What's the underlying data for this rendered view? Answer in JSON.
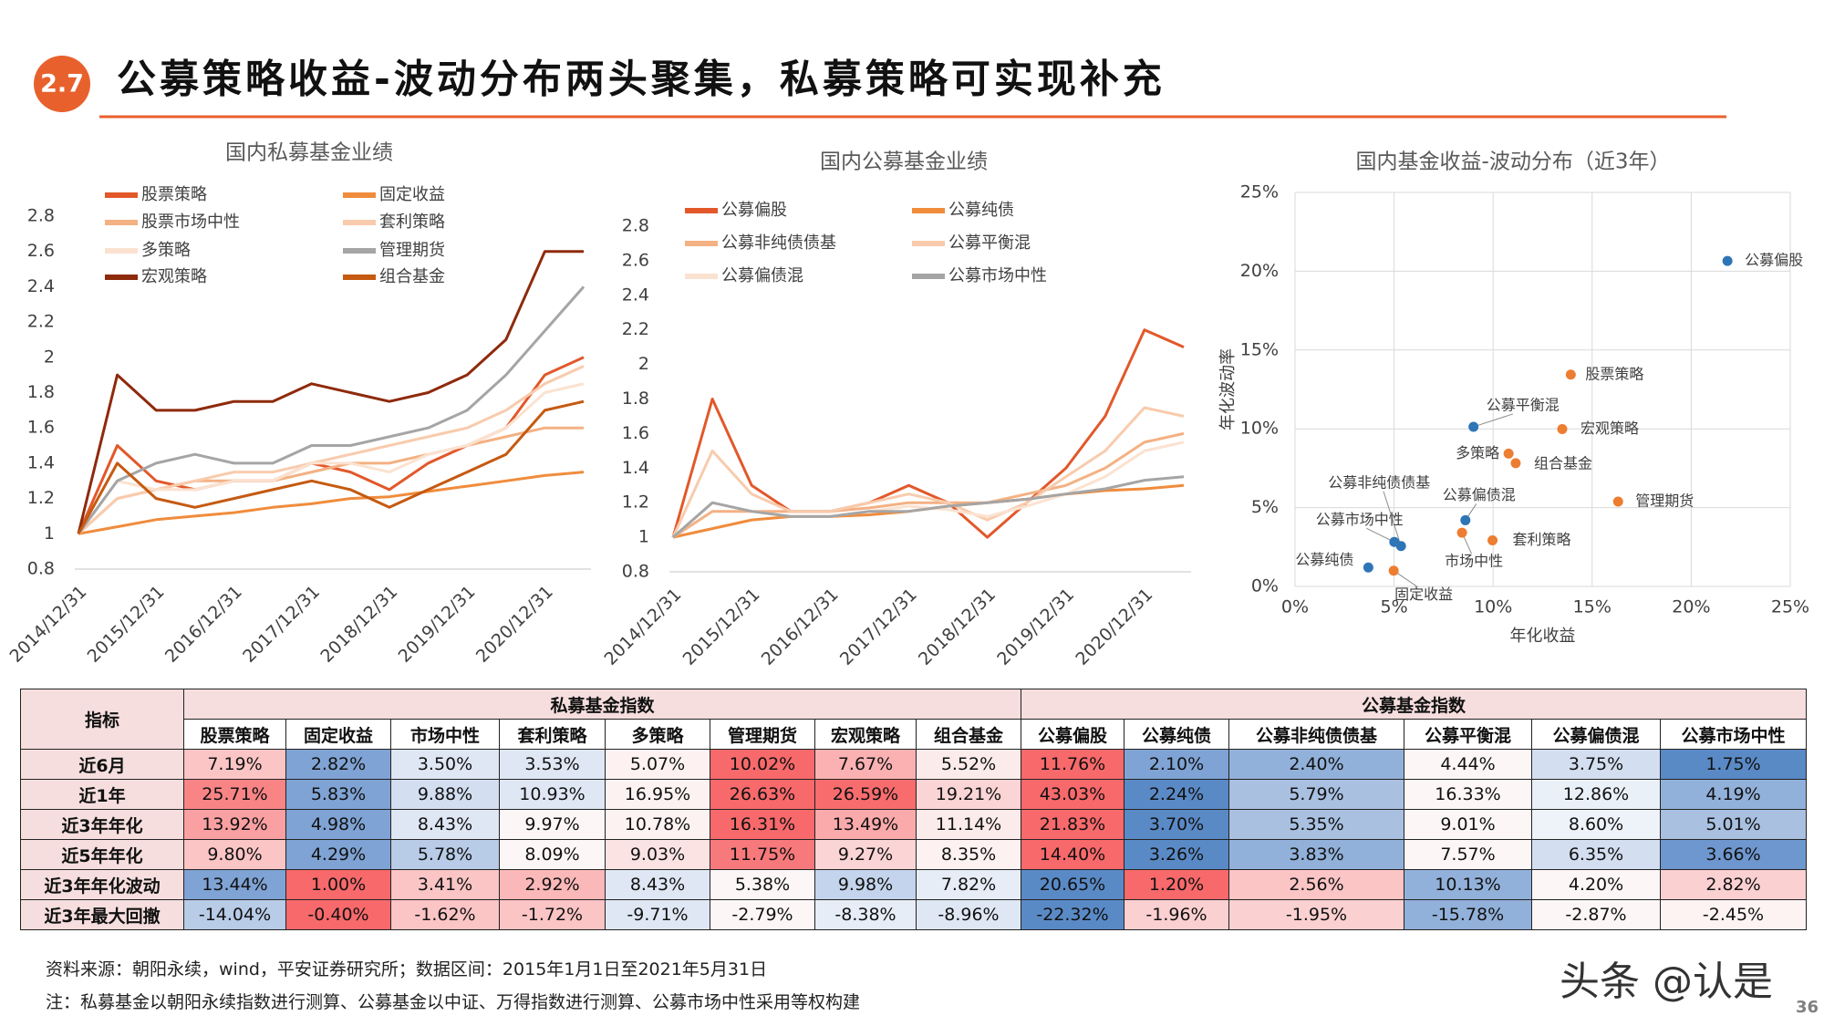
{
  "header": {
    "number": "2.7",
    "title": "公募策略收益-波动分布两头聚集，私募策略可实现补充"
  },
  "chart_data": [
    {
      "type": "line",
      "title": "国内私募基金业绩",
      "categories": [
        "2014/12/31",
        null,
        "2015/12/31",
        null,
        "2016/12/31",
        null,
        "2017/12/31",
        null,
        "2018/12/31",
        null,
        "2019/12/31",
        null,
        "2020/12/31",
        null
      ],
      "ylim": [
        0.8,
        2.8
      ],
      "yticks": [
        0.8,
        1,
        1.2,
        1.4,
        1.6,
        1.8,
        2,
        2.2,
        2.4,
        2.6,
        2.8
      ],
      "series": [
        {
          "name": "股票策略",
          "color": "#e2582a",
          "values": [
            1.0,
            1.5,
            1.3,
            1.25,
            1.3,
            1.3,
            1.4,
            1.35,
            1.25,
            1.4,
            1.5,
            1.6,
            1.9,
            2.0
          ]
        },
        {
          "name": "固定收益",
          "color": "#f08c3c",
          "values": [
            1.0,
            1.04,
            1.08,
            1.1,
            1.12,
            1.15,
            1.17,
            1.2,
            1.21,
            1.24,
            1.27,
            1.3,
            1.33,
            1.35
          ]
        },
        {
          "name": "股票市场中性",
          "color": "#f4b183",
          "values": [
            1.0,
            1.2,
            1.25,
            1.3,
            1.3,
            1.3,
            1.35,
            1.4,
            1.4,
            1.45,
            1.5,
            1.55,
            1.6,
            1.6
          ]
        },
        {
          "name": "套利策略",
          "color": "#f8cbad",
          "values": [
            1.0,
            1.2,
            1.25,
            1.3,
            1.35,
            1.35,
            1.4,
            1.45,
            1.5,
            1.55,
            1.6,
            1.7,
            1.85,
            1.95
          ]
        },
        {
          "name": "多策略",
          "color": "#fbe2d0",
          "values": [
            1.0,
            1.3,
            1.25,
            1.25,
            1.3,
            1.3,
            1.4,
            1.4,
            1.35,
            1.45,
            1.5,
            1.6,
            1.8,
            1.85
          ]
        },
        {
          "name": "管理期货",
          "color": "#a5a5a5",
          "values": [
            1.0,
            1.3,
            1.4,
            1.45,
            1.4,
            1.4,
            1.5,
            1.5,
            1.55,
            1.6,
            1.7,
            1.9,
            2.15,
            2.4
          ]
        },
        {
          "name": "宏观策略",
          "color": "#8e2a0c",
          "values": [
            1.0,
            1.9,
            1.7,
            1.7,
            1.75,
            1.75,
            1.85,
            1.8,
            1.75,
            1.8,
            1.9,
            2.1,
            2.6,
            2.6
          ]
        },
        {
          "name": "组合基金",
          "color": "#c55a11",
          "values": [
            1.0,
            1.4,
            1.2,
            1.15,
            1.2,
            1.25,
            1.3,
            1.25,
            1.15,
            1.25,
            1.35,
            1.45,
            1.7,
            1.75
          ]
        }
      ]
    },
    {
      "type": "line",
      "title": "国内公募基金业绩",
      "categories": [
        "2014/12/31",
        null,
        "2015/12/31",
        null,
        "2016/12/31",
        null,
        "2017/12/31",
        null,
        "2018/12/31",
        null,
        "2019/12/31",
        null,
        "2020/12/31",
        null
      ],
      "ylim": [
        0.8,
        2.8
      ],
      "yticks": [
        0.8,
        1,
        1.2,
        1.4,
        1.6,
        1.8,
        2,
        2.2,
        2.4,
        2.6,
        2.8
      ],
      "series": [
        {
          "name": "公募偏股",
          "color": "#e2582a",
          "values": [
            1.0,
            1.8,
            1.3,
            1.15,
            1.15,
            1.2,
            1.3,
            1.2,
            1.0,
            1.2,
            1.4,
            1.7,
            2.2,
            2.1
          ]
        },
        {
          "name": "公募纯债",
          "color": "#f08c3c",
          "values": [
            1.0,
            1.05,
            1.1,
            1.12,
            1.12,
            1.13,
            1.15,
            1.18,
            1.2,
            1.22,
            1.25,
            1.27,
            1.28,
            1.3
          ]
        },
        {
          "name": "公募非纯债债基",
          "color": "#f4b183",
          "values": [
            1.0,
            1.15,
            1.15,
            1.15,
            1.15,
            1.17,
            1.2,
            1.2,
            1.2,
            1.25,
            1.3,
            1.4,
            1.55,
            1.6
          ]
        },
        {
          "name": "公募平衡混",
          "color": "#f8cbad",
          "values": [
            1.0,
            1.5,
            1.25,
            1.15,
            1.15,
            1.2,
            1.25,
            1.2,
            1.1,
            1.2,
            1.35,
            1.5,
            1.75,
            1.7
          ]
        },
        {
          "name": "公募偏债混",
          "color": "#fbe2d0",
          "values": [
            1.0,
            1.2,
            1.15,
            1.12,
            1.12,
            1.15,
            1.18,
            1.16,
            1.12,
            1.18,
            1.25,
            1.35,
            1.5,
            1.55
          ]
        },
        {
          "name": "公募市场中性",
          "color": "#a5a5a5",
          "values": [
            1.0,
            1.2,
            1.15,
            1.12,
            1.12,
            1.15,
            1.15,
            1.18,
            1.2,
            1.22,
            1.25,
            1.28,
            1.33,
            1.35
          ]
        }
      ]
    },
    {
      "type": "scatter",
      "title": "国内基金收益-波动分布（近3年）",
      "x_label": "年化收益",
      "y_label": "年化波动率",
      "grid": true,
      "xlim": [
        0,
        25
      ],
      "ylim": [
        0,
        25
      ],
      "xticks": [
        {
          "value": 0,
          "label": "0%"
        },
        {
          "value": 5,
          "label": "5%"
        },
        {
          "value": 10,
          "label": "10%"
        },
        {
          "value": 15,
          "label": "15%"
        },
        {
          "value": 20,
          "label": "20%"
        },
        {
          "value": 25,
          "label": "25%"
        }
      ],
      "yticks": [
        {
          "value": 0,
          "label": "0%"
        },
        {
          "value": 5,
          "label": "5%"
        },
        {
          "value": 10,
          "label": "10%"
        },
        {
          "value": 15,
          "label": "15%"
        },
        {
          "value": 20,
          "label": "20%"
        },
        {
          "value": 25,
          "label": "25%"
        }
      ],
      "series": [
        {
          "color": "#ed7d31",
          "labels": [
            "股票策略",
            "固定收益",
            "市场中性",
            "套利策略",
            "多策略",
            "管理期货",
            "宏观策略",
            "组合基金"
          ],
          "x": [
            13.92,
            4.98,
            8.43,
            9.97,
            10.78,
            16.31,
            13.49,
            11.14
          ],
          "values": [
            13.44,
            1.0,
            3.41,
            2.92,
            8.43,
            5.38,
            9.98,
            7.82
          ]
        },
        {
          "color": "#2e75b6",
          "labels": [
            "公募偏股",
            "公募纯债",
            "公募非纯债债基",
            "公募平衡混",
            "公募偏债混",
            "公募市场中性"
          ],
          "x": [
            21.83,
            3.7,
            5.35,
            9.01,
            8.6,
            5.01
          ],
          "values": [
            20.65,
            1.2,
            2.56,
            10.13,
            4.2,
            2.82
          ]
        }
      ]
    }
  ],
  "table": {
    "corner": "指标",
    "groups": [
      "私募基金指数",
      "公募基金指数"
    ],
    "columns": [
      "股票策略",
      "固定收益",
      "市场中性",
      "套利策略",
      "多策略",
      "管理期货",
      "宏观策略",
      "组合基金",
      "公募偏股",
      "公募纯债",
      "公募非纯债债基",
      "公募平衡混",
      "公募偏债混",
      "公募市场中性"
    ],
    "rows": [
      {
        "label": "近6月",
        "cells": [
          "7.19%",
          "2.82%",
          "3.50%",
          "3.53%",
          "5.07%",
          "10.02%",
          "7.67%",
          "5.52%",
          "11.76%",
          "2.10%",
          "2.40%",
          "4.44%",
          "3.75%",
          "1.75%"
        ],
        "colors": [
          "#fbc4c5",
          "#7fa3d4",
          "#dfe7f4",
          "#dfe7f4",
          "#fdf1f1",
          "#f8696b",
          "#fbb1b2",
          "#fcebeb",
          "#f8696b",
          "#7fa3d4",
          "#92b1da",
          "#fcf6f6",
          "#d3def0",
          "#5a8ac6"
        ]
      },
      {
        "label": "近1年",
        "cells": [
          "25.71%",
          "5.83%",
          "9.88%",
          "10.93%",
          "16.95%",
          "26.63%",
          "26.59%",
          "19.21%",
          "43.03%",
          "2.24%",
          "5.79%",
          "16.33%",
          "12.86%",
          "4.19%"
        ],
        "colors": [
          "#f98486",
          "#7fa3d4",
          "#d3def0",
          "#dfe7f4",
          "#fcf2f2",
          "#f8696b",
          "#f86c6e",
          "#fbd4d5",
          "#f8696b",
          "#5a8ac6",
          "#a9c0e1",
          "#fcf6f6",
          "#eaf0f8",
          "#92b1da"
        ]
      },
      {
        "label": "近3年年化",
        "cells": [
          "13.92%",
          "4.98%",
          "8.43%",
          "9.97%",
          "10.78%",
          "16.31%",
          "13.49%",
          "11.14%",
          "21.83%",
          "3.70%",
          "5.35%",
          "9.01%",
          "8.60%",
          "5.01%"
        ],
        "colors": [
          "#faa0a2",
          "#7fa3d4",
          "#dfe7f4",
          "#fcf6f6",
          "#fcf2f2",
          "#f8696b",
          "#faaaab",
          "#fcebeb",
          "#f8696b",
          "#5a8ac6",
          "#a9c0e1",
          "#fcf6f6",
          "#eef2f9",
          "#a9c0e1"
        ]
      },
      {
        "label": "近5年年化",
        "cells": [
          "9.80%",
          "4.29%",
          "5.78%",
          "8.09%",
          "9.03%",
          "11.75%",
          "9.27%",
          "8.35%",
          "14.40%",
          "3.26%",
          "3.83%",
          "7.57%",
          "6.35%",
          "3.66%"
        ],
        "colors": [
          "#fbc4c5",
          "#7fa3d4",
          "#b8cbe7",
          "#fcf6f6",
          "#fbe3e4",
          "#f8797b",
          "#fbd4d5",
          "#fdf1f1",
          "#f8696b",
          "#5a8ac6",
          "#92b1da",
          "#fcf6f6",
          "#d3def0",
          "#6f97cf"
        ]
      },
      {
        "label": "近3年年化波动",
        "cells": [
          "13.44%",
          "1.00%",
          "3.41%",
          "2.92%",
          "8.43%",
          "5.38%",
          "9.98%",
          "7.82%",
          "20.65%",
          "1.20%",
          "2.56%",
          "10.13%",
          "4.20%",
          "2.82%"
        ],
        "colors": [
          "#7fa3d4",
          "#f8696b",
          "#fbc4c5",
          "#fbb8b9",
          "#dfe7f4",
          "#fcf6f6",
          "#c4d4ec",
          "#e6edf7",
          "#5a8ac6",
          "#f8696b",
          "#fbc4c5",
          "#92b1da",
          "#fcf6f6",
          "#fbd0d1"
        ]
      },
      {
        "label": "近3年最大回撤",
        "cells": [
          "-14.04%",
          "-0.40%",
          "-1.62%",
          "-1.72%",
          "-9.71%",
          "-2.79%",
          "-8.38%",
          "-8.96%",
          "-22.32%",
          "-1.96%",
          "-1.95%",
          "-15.78%",
          "-2.87%",
          "-2.45%"
        ],
        "colors": [
          "#b8cbe7",
          "#f8696b",
          "#fbc4c5",
          "#fbc4c5",
          "#dfe7f4",
          "#fcf6f6",
          "#e6edf7",
          "#dfe7f4",
          "#5a8ac6",
          "#fbd0d1",
          "#fbd0d1",
          "#92b1da",
          "#fcf6f6",
          "#fdf3f3"
        ]
      }
    ]
  },
  "notes": [
    "资料来源：朝阳永续，wind，平安证券研究所；数据区间：2015年1月1日至2021年5月31日",
    "注：私募基金以朝阳永续指数进行测算、公募基金以中证、万得指数进行测算、公募市场中性采用等权构建"
  ],
  "watermark": "头条 @认是",
  "page_number": "36"
}
